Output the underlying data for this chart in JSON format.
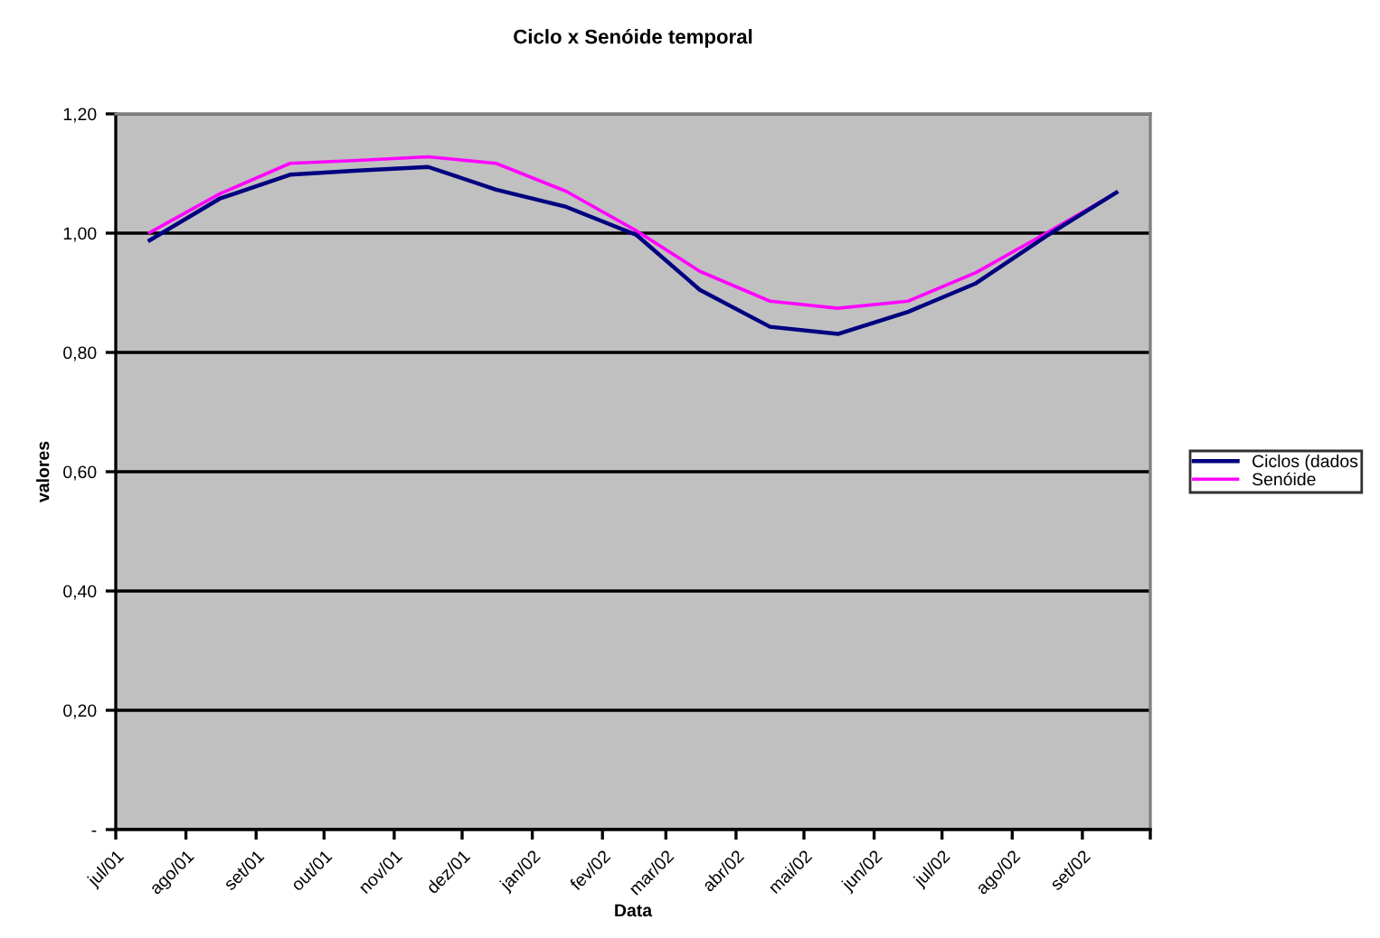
{
  "chart_data": {
    "type": "line",
    "title": "Ciclo x Senóide temporal",
    "xlabel": "Data",
    "ylabel": "valores",
    "x": [
      "2001-07-16",
      "2001-08-16",
      "2001-09-16",
      "2001-10-16",
      "2001-11-16",
      "2001-12-16",
      "2002-01-16",
      "2002-02-16",
      "2002-03-16",
      "2002-04-16",
      "2002-05-16",
      "2002-06-16",
      "2002-07-16",
      "2002-08-16",
      "2002-09-16"
    ],
    "series": [
      {
        "name": "Ciclos (dados",
        "color": "#000080",
        "values": [
          0.988,
          1.058,
          1.098,
          1.105,
          1.111,
          1.073,
          1.044,
          0.997,
          0.905,
          0.843,
          0.831,
          0.868,
          0.916,
          0.995,
          1.068
        ]
      },
      {
        "name": "Senóide",
        "color": "#ff00ff",
        "values": [
          1.001,
          1.066,
          1.117,
          1.122,
          1.128,
          1.117,
          1.07,
          1.004,
          0.936,
          0.886,
          0.874,
          0.886,
          0.934,
          1.0,
          1.068
        ]
      }
    ],
    "xlim": [
      "2001-07-01",
      "2002-10-01"
    ],
    "xticks": [
      {
        "value": "2001-07-01",
        "label": "jul/01"
      },
      {
        "value": "2001-08-01",
        "label": "ago/01"
      },
      {
        "value": "2001-09-01",
        "label": "set/01"
      },
      {
        "value": "2001-10-01",
        "label": "out/01"
      },
      {
        "value": "2001-11-01",
        "label": "nov/01"
      },
      {
        "value": "2001-12-01",
        "label": "dez/01"
      },
      {
        "value": "2002-01-01",
        "label": "jan/02"
      },
      {
        "value": "2002-02-01",
        "label": "fev/02"
      },
      {
        "value": "2002-03-01",
        "label": "mar/02"
      },
      {
        "value": "2002-04-01",
        "label": "abr/02"
      },
      {
        "value": "2002-05-01",
        "label": "mai/02"
      },
      {
        "value": "2002-06-01",
        "label": "jun/02"
      },
      {
        "value": "2002-07-01",
        "label": "jul/02"
      },
      {
        "value": "2002-08-01",
        "label": "ago/02"
      },
      {
        "value": "2002-09-01",
        "label": "set/02"
      },
      {
        "value": "2002-10-01",
        "label": null
      }
    ],
    "ylim": [
      0,
      1.2
    ],
    "yticks": [
      {
        "value": 0,
        "label": "-"
      },
      {
        "value": 0.2,
        "label": "0,20"
      },
      {
        "value": 0.4,
        "label": "0,40"
      },
      {
        "value": 0.6,
        "label": "0,60"
      },
      {
        "value": 0.8,
        "label": "0,80"
      },
      {
        "value": 1.0,
        "label": "1,00"
      },
      {
        "value": 1.2,
        "label": "1,20"
      }
    ],
    "grid": "y",
    "legend": "right",
    "marker": "none",
    "line_style": "solid"
  }
}
